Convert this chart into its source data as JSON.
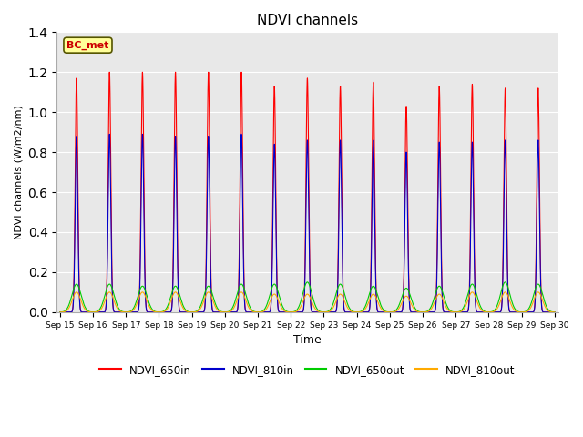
{
  "title": "NDVI channels",
  "xlabel": "Time",
  "ylabel": "NDVI channels (W/m2/nm)",
  "ylim": [
    0,
    1.4
  ],
  "bg_color": "#e8e8e8",
  "legend_labels": [
    "NDVI_650in",
    "NDVI_810in",
    "NDVI_650out",
    "NDVI_810out"
  ],
  "legend_colors": [
    "#ff0000",
    "#0000cc",
    "#00cc00",
    "#ffaa00"
  ],
  "annotation_text": "BC_met",
  "annotation_bg": "#ffff99",
  "annotation_border": "#555500",
  "n_days": 15,
  "start_day": 15,
  "peak_650in": [
    1.17,
    1.2,
    1.2,
    1.2,
    1.2,
    1.2,
    1.13,
    1.17,
    1.13,
    1.15,
    1.03,
    1.13,
    1.14,
    1.12,
    1.12
  ],
  "peak_810in": [
    0.88,
    0.89,
    0.89,
    0.88,
    0.88,
    0.89,
    0.84,
    0.86,
    0.86,
    0.86,
    0.8,
    0.85,
    0.85,
    0.86,
    0.86
  ],
  "peak_650out": [
    0.14,
    0.14,
    0.13,
    0.13,
    0.13,
    0.14,
    0.14,
    0.15,
    0.14,
    0.13,
    0.12,
    0.13,
    0.14,
    0.15,
    0.14
  ],
  "peak_810out": [
    0.1,
    0.1,
    0.1,
    0.1,
    0.1,
    0.1,
    0.09,
    0.09,
    0.09,
    0.09,
    0.08,
    0.09,
    0.1,
    0.1,
    0.1
  ],
  "tick_labels": [
    "Sep 15",
    "Sep 16",
    "Sep 17",
    "Sep 18",
    "Sep 19",
    "Sep 20",
    "Sep 21",
    "Sep 22",
    "Sep 23",
    "Sep 24",
    "Sep 25",
    "Sep 26",
    "Sep 27",
    "Sep 28",
    "Sep 29",
    "Sep 30"
  ]
}
